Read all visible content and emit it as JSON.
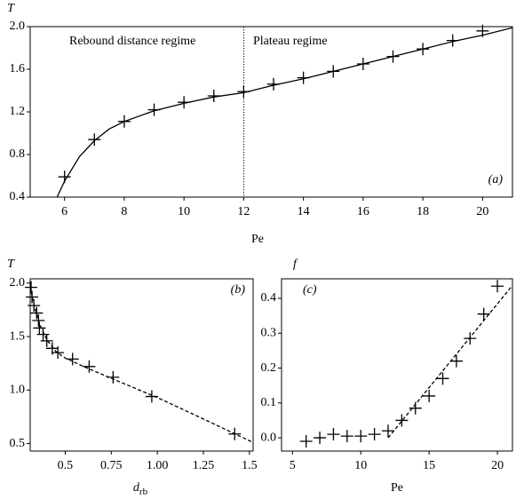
{
  "chart_data": [
    {
      "type": "scatter",
      "y_label": "T",
      "x_label": "Pe",
      "xlim": [
        4.85,
        21
      ],
      "ylim": [
        0.4,
        2.0
      ],
      "xticks": [
        6,
        8,
        10,
        12,
        14,
        16,
        18,
        20
      ],
      "yticks": [
        {
          "value": 0.4,
          "label": "0.4"
        },
        {
          "value": 0.8,
          "label": "0.8"
        },
        {
          "value": 1.2,
          "label": "1.2"
        },
        {
          "value": 1.6,
          "label": "1.6"
        },
        {
          "value": 2.0,
          "label": "2.0"
        }
      ],
      "vline": 12,
      "annotations": [
        "Rebound distance regime",
        "Plateau regime",
        "(a)"
      ],
      "series": [
        {
          "style": "marker",
          "color": "#000000",
          "x": [
            6,
            7,
            8,
            9,
            10,
            11,
            12,
            13,
            14,
            15,
            16,
            17,
            18,
            19,
            20
          ],
          "values": [
            0.59,
            0.94,
            1.11,
            1.22,
            1.29,
            1.35,
            1.39,
            1.46,
            1.52,
            1.58,
            1.65,
            1.72,
            1.79,
            1.87,
            1.96
          ]
        },
        {
          "style": "solid",
          "color": "#000000",
          "x": [
            5.75,
            6,
            6.5,
            7,
            7.5,
            8,
            9,
            10,
            11,
            12,
            13,
            14,
            15,
            16,
            17,
            18,
            19,
            20,
            21
          ],
          "values": [
            0.4,
            0.55,
            0.78,
            0.93,
            1.04,
            1.11,
            1.21,
            1.28,
            1.34,
            1.38,
            1.45,
            1.51,
            1.58,
            1.65,
            1.72,
            1.79,
            1.86,
            1.92,
            1.99
          ]
        }
      ]
    },
    {
      "type": "scatter",
      "y_label": "T",
      "x_label": "d",
      "x_label_sub": "rb",
      "xlim": [
        0.31,
        1.52
      ],
      "ylim": [
        0.43,
        2.04
      ],
      "xticks": [
        0.5,
        0.75,
        {
          "value": 1.0,
          "label": "1.00"
        },
        1.25,
        1.5
      ],
      "yticks": [
        {
          "value": 0.5,
          "label": "0.5"
        },
        {
          "value": 1.0,
          "label": "1.0"
        },
        {
          "value": 1.5,
          "label": "1.5"
        },
        {
          "value": 2.0,
          "label": "2.0"
        }
      ],
      "annotations": [
        "(b)"
      ],
      "series": [
        {
          "style": "marker",
          "color": "#000000",
          "x": [
            1.42,
            0.97,
            0.76,
            0.63,
            0.54,
            0.46,
            0.43,
            0.4,
            0.38,
            0.36,
            0.355,
            0.345,
            0.33,
            0.32,
            0.315
          ],
          "values": [
            0.59,
            0.94,
            1.12,
            1.22,
            1.29,
            1.35,
            1.39,
            1.46,
            1.52,
            1.58,
            1.65,
            1.72,
            1.79,
            1.87,
            1.96
          ]
        },
        {
          "style": "dashed",
          "color": "#000000",
          "x": [
            0.31,
            0.33,
            0.36,
            0.4,
            0.45,
            0.5,
            0.6,
            0.75,
            1.0,
            1.25,
            1.52
          ],
          "values": [
            1.97,
            1.8,
            1.62,
            1.47,
            1.36,
            1.3,
            1.22,
            1.11,
            0.93,
            0.73,
            0.51
          ]
        }
      ]
    },
    {
      "type": "scatter",
      "y_label": "f",
      "x_label": "Pe",
      "xlim": [
        4.2,
        21.1
      ],
      "ylim": [
        -0.038,
        0.456
      ],
      "xticks": [
        5,
        10,
        15,
        20
      ],
      "yticks": [
        {
          "value": 0.0,
          "label": "0.0"
        },
        {
          "value": 0.1,
          "label": "0.1"
        },
        {
          "value": 0.2,
          "label": "0.2"
        },
        {
          "value": 0.3,
          "label": "0.3"
        },
        {
          "value": 0.4,
          "label": "0.4"
        }
      ],
      "annotations": [
        "(c)"
      ],
      "series": [
        {
          "style": "marker",
          "color": "#000000",
          "x": [
            6,
            7,
            8,
            9,
            10,
            11,
            12,
            13,
            14,
            15,
            16,
            17,
            18,
            19,
            20
          ],
          "values": [
            -0.01,
            0.0,
            0.01,
            0.005,
            0.005,
            0.01,
            0.02,
            0.05,
            0.085,
            0.12,
            0.17,
            0.22,
            0.285,
            0.355,
            0.435
          ]
        },
        {
          "style": "dashed",
          "color": "#000000",
          "x": [
            12,
            21.1
          ],
          "values": [
            0,
            0.437
          ]
        }
      ]
    }
  ]
}
